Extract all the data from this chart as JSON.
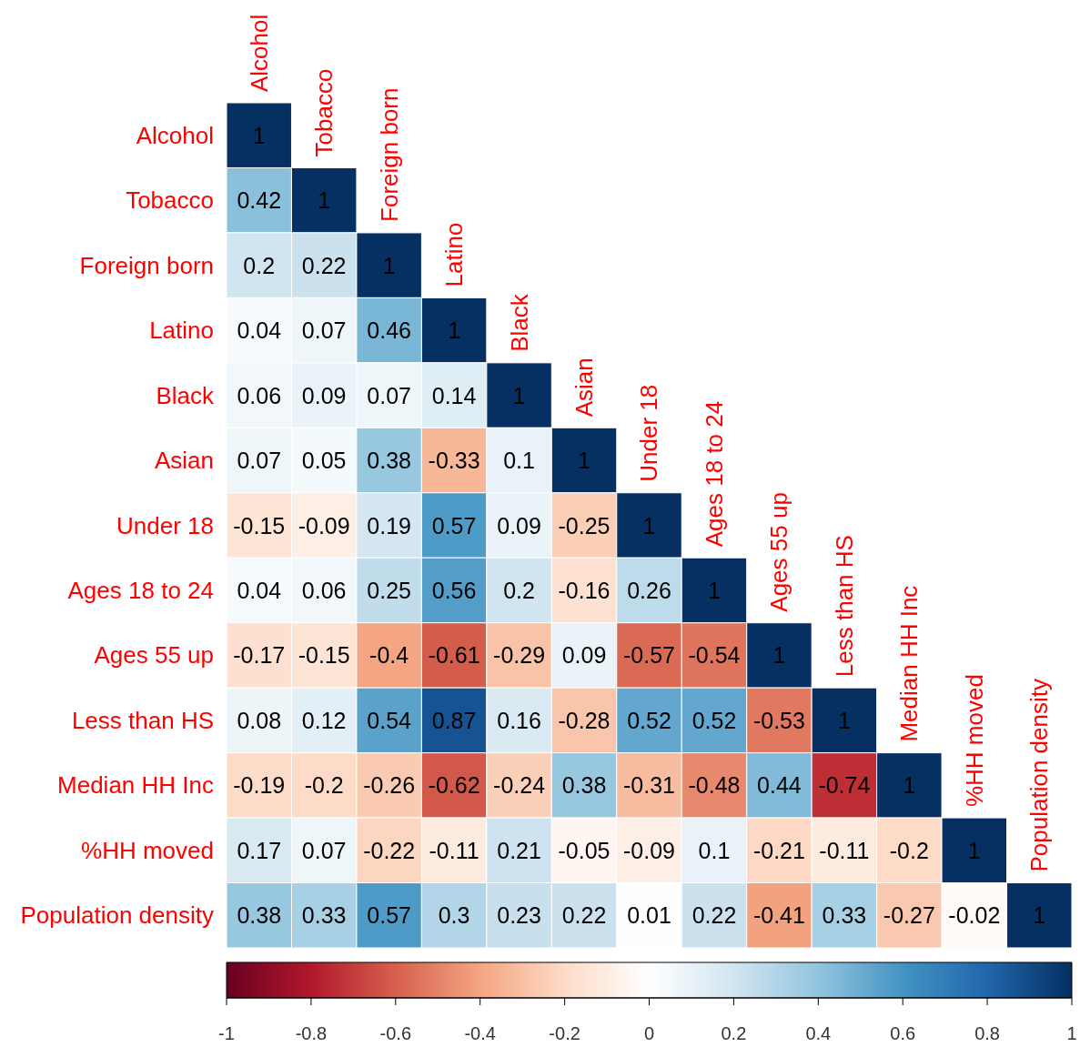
{
  "chart_data": {
    "type": "heatmap",
    "categories": [
      "Alcohol",
      "Tobacco",
      "Foreign born",
      "Latino",
      "Black",
      "Asian",
      "Under 18",
      "Ages 18 to 24",
      "Ages 55 up",
      "Less than HS",
      "Median HH Inc",
      "%HH moved",
      "Population density"
    ],
    "y_categories": [
      "Alcohol",
      "Tobacco",
      "Foreign born",
      "Latino",
      "Black",
      "Asian",
      "Under 18",
      "Ages 18 to 24",
      "Ages 55 up",
      "Less than HS",
      "Median HH Inc",
      "%HH moved",
      "Population density"
    ],
    "cells": [
      [
        1,
        null,
        null,
        null,
        null,
        null,
        null,
        null,
        null,
        null,
        null,
        null,
        null
      ],
      [
        0.42,
        1,
        null,
        null,
        null,
        null,
        null,
        null,
        null,
        null,
        null,
        null,
        null
      ],
      [
        0.2,
        0.22,
        1,
        null,
        null,
        null,
        null,
        null,
        null,
        null,
        null,
        null,
        null
      ],
      [
        0.04,
        0.07,
        0.46,
        1,
        null,
        null,
        null,
        null,
        null,
        null,
        null,
        null,
        null
      ],
      [
        0.06,
        0.09,
        0.07,
        0.14,
        1,
        null,
        null,
        null,
        null,
        null,
        null,
        null,
        null
      ],
      [
        0.07,
        0.05,
        0.38,
        -0.33,
        0.1,
        1,
        null,
        null,
        null,
        null,
        null,
        null,
        null
      ],
      [
        -0.15,
        -0.09,
        0.19,
        0.57,
        0.09,
        -0.25,
        1,
        null,
        null,
        null,
        null,
        null,
        null
      ],
      [
        0.04,
        0.06,
        0.25,
        0.56,
        0.2,
        -0.16,
        0.26,
        1,
        null,
        null,
        null,
        null,
        null
      ],
      [
        -0.17,
        -0.15,
        -0.4,
        -0.61,
        -0.29,
        0.09,
        -0.57,
        -0.54,
        1,
        null,
        null,
        null,
        null
      ],
      [
        0.08,
        0.12,
        0.54,
        0.87,
        0.16,
        -0.28,
        0.52,
        0.52,
        -0.53,
        1,
        null,
        null,
        null
      ],
      [
        -0.19,
        -0.2,
        -0.26,
        -0.62,
        -0.24,
        0.38,
        -0.31,
        -0.48,
        0.44,
        -0.74,
        1,
        null,
        null
      ],
      [
        0.17,
        0.07,
        -0.22,
        -0.11,
        0.21,
        -0.05,
        -0.09,
        0.1,
        -0.21,
        -0.11,
        -0.2,
        1,
        null
      ],
      [
        0.38,
        0.33,
        0.57,
        0.3,
        0.23,
        0.22,
        0.01,
        0.22,
        -0.41,
        0.33,
        -0.27,
        -0.02,
        1
      ]
    ],
    "data_labels": true,
    "clim": [
      -1,
      1
    ],
    "cticks": [
      -1,
      -0.8,
      -0.6,
      -0.4,
      -0.2,
      0,
      0.2,
      0.4,
      0.6,
      0.8,
      1
    ]
  }
}
